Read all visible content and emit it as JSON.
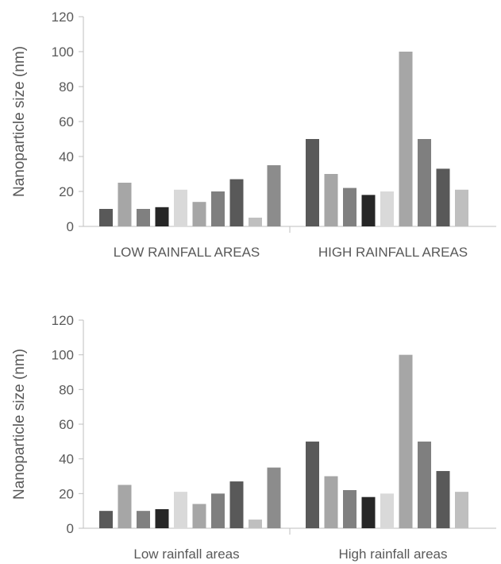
{
  "palette": [
    "#595959",
    "#a6a6a6",
    "#808080",
    "#262626",
    "#d9d9d9",
    "#a6a6a6",
    "#7f7f7f",
    "#595959",
    "#bfbfbf",
    "#8c8c8c"
  ],
  "chart_data": [
    {
      "type": "bar",
      "ylabel": "Nanoparticle size (nm)",
      "ylim": [
        0,
        120
      ],
      "yticks": [
        0,
        20,
        40,
        60,
        80,
        100,
        120
      ],
      "grid": false,
      "legend": "none",
      "categories": [
        "LOW RAINFALL AREAS",
        "HIGH RAINFALL AREAS"
      ],
      "groups": [
        {
          "category": "LOW RAINFALL AREAS",
          "values": [
            10,
            25,
            10,
            11,
            21,
            14,
            20,
            27,
            5,
            35
          ]
        },
        {
          "category": "HIGH RAINFALL AREAS",
          "values": [
            50,
            30,
            22,
            18,
            20,
            100,
            50,
            33,
            21
          ]
        }
      ]
    },
    {
      "type": "bar",
      "ylabel": "Nanoparticle size (nm)",
      "ylim": [
        0,
        120
      ],
      "yticks": [
        0,
        20,
        40,
        60,
        80,
        100,
        120
      ],
      "grid": false,
      "legend": "none",
      "categories": [
        "Low rainfall areas",
        "High rainfall areas"
      ],
      "groups": [
        {
          "category": "Low rainfall areas",
          "values": [
            10,
            25,
            10,
            11,
            21,
            14,
            20,
            27,
            5,
            35
          ]
        },
        {
          "category": "High rainfall areas",
          "values": [
            50,
            30,
            22,
            18,
            20,
            100,
            50,
            33,
            21
          ]
        }
      ]
    }
  ]
}
